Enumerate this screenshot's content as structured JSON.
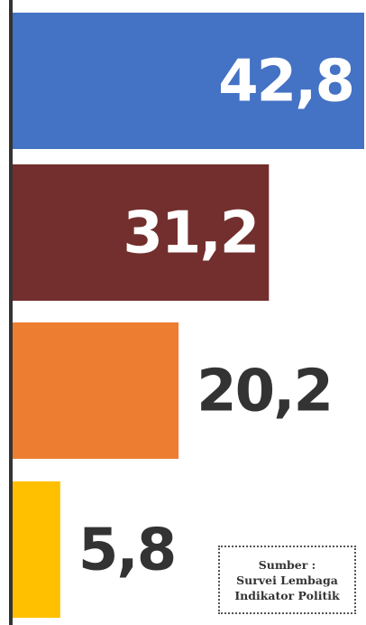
{
  "chart_data": {
    "type": "bar",
    "orientation": "horizontal",
    "values": [
      42.8,
      31.2,
      20.2,
      5.8
    ],
    "value_labels": [
      "42,8",
      "31,2",
      "20,2",
      "5,8"
    ],
    "colors": [
      "#4472C4",
      "#722F2D",
      "#ED7D31",
      "#FFC000"
    ],
    "label_colors_inside": "#ffffff",
    "label_colors_outside": "#333333",
    "axis_color": "#333333",
    "xlim": [
      0,
      42.8
    ],
    "grid": false
  },
  "source": {
    "line1": "Sumber :",
    "line2": "Survei Lembaga",
    "line3": "Indikator Politik"
  }
}
